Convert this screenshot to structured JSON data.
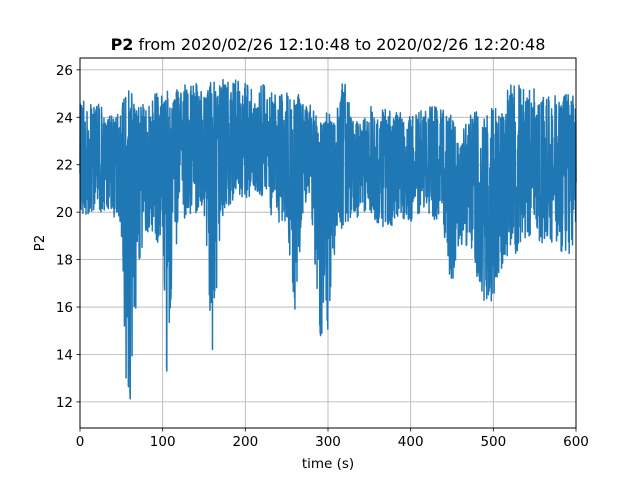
{
  "chart_data": {
    "type": "line",
    "title_bold": "P2",
    "title_rest": " from 2020/02/26 12:10:48 to 2020/02/26 12:20:48",
    "xlabel": "time (s)",
    "ylabel": "P2",
    "xlim": [
      0,
      600
    ],
    "ylim": [
      10.9,
      26.5
    ],
    "xticks": [
      0,
      100,
      200,
      300,
      400,
      500,
      600
    ],
    "yticks": [
      12,
      14,
      16,
      18,
      20,
      22,
      24,
      26
    ],
    "grid": true,
    "line_color": "#1f77b4",
    "envelope": {
      "x": [
        0,
        10,
        20,
        30,
        40,
        50,
        55,
        60,
        70,
        80,
        90,
        100,
        105,
        110,
        120,
        130,
        140,
        150,
        160,
        170,
        180,
        190,
        200,
        210,
        220,
        230,
        240,
        250,
        260,
        270,
        280,
        290,
        300,
        310,
        318,
        330,
        340,
        350,
        360,
        370,
        380,
        390,
        400,
        410,
        420,
        430,
        440,
        450,
        460,
        470,
        480,
        490,
        500,
        510,
        520,
        530,
        540,
        550,
        560,
        570,
        580,
        590,
        600
      ],
      "high": [
        25.0,
        24.8,
        24.9,
        24.1,
        24.2,
        24.1,
        25.6,
        25.2,
        24.5,
        24.6,
        25.1,
        25.0,
        25.5,
        24.8,
        25.3,
        25.4,
        25.5,
        25.2,
        25.7,
        25.8,
        25.5,
        25.6,
        25.5,
        25.3,
        25.4,
        25.2,
        25.0,
        25.1,
        25.2,
        24.9,
        24.5,
        24.0,
        24.3,
        24.1,
        25.8,
        24.3,
        23.9,
        24.6,
        24.2,
        24.4,
        24.2,
        24.3,
        24.0,
        24.3,
        24.4,
        24.5,
        24.3,
        24.1,
        23.2,
        24.0,
        24.6,
        24.0,
        24.5,
        24.2,
        25.5,
        25.4,
        25.2,
        25.3,
        25.0,
        25.2,
        24.8,
        25.0,
        25.0
      ],
      "low": [
        20.0,
        19.8,
        20.0,
        19.9,
        19.8,
        19.2,
        13.0,
        11.6,
        17.2,
        19.3,
        18.5,
        19.0,
        12.8,
        16.0,
        19.8,
        19.5,
        19.9,
        20.0,
        13.8,
        19.5,
        20.0,
        20.6,
        20.5,
        20.8,
        20.3,
        19.9,
        19.5,
        19.6,
        15.8,
        19.9,
        20.0,
        14.7,
        14.8,
        19.0,
        19.2,
        19.8,
        19.6,
        19.8,
        19.5,
        19.2,
        19.4,
        19.6,
        19.3,
        19.6,
        20.0,
        19.4,
        19.0,
        16.7,
        18.5,
        18.6,
        17.3,
        16.0,
        16.0,
        17.5,
        18.4,
        17.9,
        18.7,
        19.2,
        18.5,
        18.3,
        18.4,
        18.1,
        19.0
      ],
      "mid": [
        22.5,
        22.2,
        22.5,
        22.0,
        22.0,
        21.8,
        21.5,
        21.0,
        21.7,
        22.0,
        22.0,
        22.0,
        21.0,
        21.5,
        22.5,
        22.5,
        22.8,
        22.8,
        22.5,
        22.8,
        23.0,
        23.0,
        23.0,
        23.0,
        22.8,
        22.5,
        22.4,
        22.3,
        22.2,
        22.3,
        22.3,
        22.0,
        21.8,
        22.0,
        22.2,
        22.0,
        22.0,
        22.0,
        22.0,
        21.8,
        21.8,
        22.0,
        21.8,
        21.9,
        22.0,
        22.0,
        21.8,
        21.5,
        21.3,
        21.5,
        21.3,
        21.0,
        21.2,
        21.3,
        21.8,
        21.8,
        21.8,
        22.0,
        21.8,
        21.6,
        21.5,
        21.6,
        22.0
      ]
    }
  }
}
